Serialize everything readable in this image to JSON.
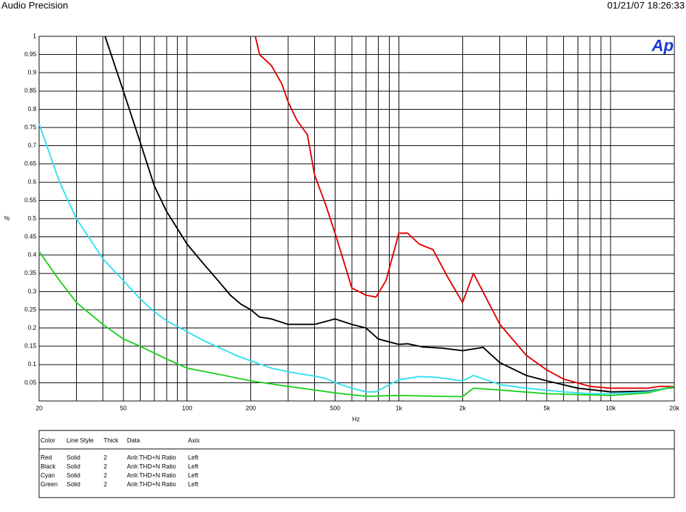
{
  "header": {
    "title": "Audio Precision",
    "timestamp": "01/21/07 18:26:33",
    "logo": "Ap"
  },
  "chart_data": {
    "type": "line",
    "xlabel": "Hz",
    "ylabel": "%",
    "xscale": "log",
    "grid": true,
    "xlim": [
      20,
      20000
    ],
    "ylim": [
      0,
      1
    ],
    "xticks": [
      20,
      50,
      100,
      200,
      500,
      {
        "value": 1000,
        "label": "1k"
      },
      {
        "value": 2000,
        "label": "2k"
      },
      {
        "value": 5000,
        "label": "5k"
      },
      {
        "value": 10000,
        "label": "10k"
      },
      {
        "value": 20000,
        "label": "20k"
      }
    ],
    "xminor": [
      30,
      40,
      60,
      70,
      80,
      90,
      300,
      400,
      600,
      700,
      800,
      900,
      3000,
      4000,
      6000,
      7000,
      8000,
      9000
    ],
    "yticks": [
      0.05,
      0.1,
      0.15,
      0.2,
      0.25,
      0.3,
      0.35,
      0.4,
      0.45,
      0.5,
      0.55,
      0.6,
      0.65,
      0.7,
      0.75,
      0.8,
      0.85,
      0.9,
      0.95,
      1
    ],
    "series": [
      {
        "name": "Red",
        "color": "#e00000",
        "x": [
          210,
          220,
          250,
          280,
          300,
          330,
          370,
          400,
          450,
          500,
          600,
          700,
          780,
          870,
          1000,
          1100,
          1250,
          1450,
          1700,
          2000,
          2250,
          3000,
          4000,
          5000,
          6000,
          8000,
          10000,
          15000,
          17000,
          20000
        ],
        "values": [
          1.0,
          0.95,
          0.92,
          0.87,
          0.82,
          0.77,
          0.73,
          0.62,
          0.54,
          0.46,
          0.31,
          0.29,
          0.285,
          0.33,
          0.46,
          0.46,
          0.43,
          0.415,
          0.34,
          0.27,
          0.35,
          0.21,
          0.125,
          0.085,
          0.06,
          0.04,
          0.035,
          0.035,
          0.04,
          0.04
        ]
      },
      {
        "name": "Black",
        "color": "#000000",
        "x": [
          41,
          50,
          60,
          70,
          80,
          100,
          120,
          140,
          160,
          180,
          200,
          220,
          250,
          300,
          350,
          400,
          500,
          600,
          700,
          800,
          1000,
          1100,
          1300,
          1600,
          2000,
          2500,
          3000,
          4000,
          5000,
          7000,
          10000,
          15000,
          20000
        ],
        "values": [
          1.0,
          0.85,
          0.71,
          0.59,
          0.52,
          0.43,
          0.375,
          0.33,
          0.29,
          0.265,
          0.25,
          0.23,
          0.225,
          0.21,
          0.21,
          0.21,
          0.225,
          0.21,
          0.2,
          0.17,
          0.155,
          0.157,
          0.148,
          0.145,
          0.138,
          0.147,
          0.105,
          0.07,
          0.055,
          0.035,
          0.025,
          0.027,
          0.038
        ]
      },
      {
        "name": "Cyan",
        "color": "#30e0f0",
        "x": [
          20,
          25,
          30,
          40,
          50,
          60,
          70,
          80,
          100,
          120,
          150,
          170,
          200,
          250,
          300,
          400,
          450,
          500,
          600,
          700,
          780,
          900,
          1000,
          1250,
          1500,
          2000,
          2250,
          3000,
          4000,
          6000,
          8000,
          10000,
          15000,
          20000
        ],
        "values": [
          0.76,
          0.6,
          0.5,
          0.39,
          0.33,
          0.28,
          0.245,
          0.22,
          0.19,
          0.165,
          0.14,
          0.125,
          0.11,
          0.09,
          0.08,
          0.068,
          0.062,
          0.05,
          0.035,
          0.025,
          0.025,
          0.045,
          0.058,
          0.067,
          0.065,
          0.055,
          0.07,
          0.045,
          0.035,
          0.025,
          0.02,
          0.02,
          0.025,
          0.04
        ]
      },
      {
        "name": "Green",
        "color": "#20d020",
        "x": [
          20,
          25,
          30,
          40,
          50,
          60,
          80,
          100,
          150,
          200,
          300,
          400,
          500,
          700,
          1000,
          1500,
          2000,
          2250,
          3000,
          5000,
          10000,
          15000,
          20000
        ],
        "values": [
          0.41,
          0.33,
          0.27,
          0.21,
          0.17,
          0.15,
          0.115,
          0.09,
          0.07,
          0.055,
          0.04,
          0.03,
          0.022,
          0.013,
          0.015,
          0.013,
          0.012,
          0.035,
          0.03,
          0.02,
          0.015,
          0.022,
          0.04
        ]
      }
    ]
  },
  "legend_table": {
    "headers": [
      "Color",
      "Line Style",
      "Thick",
      "Data",
      "Axis"
    ],
    "rows": [
      [
        "Solid",
        "2",
        "Anlr.THD+N Ratio",
        "Left"
      ],
      [
        "Solid",
        "2",
        "Anlr.THD+N Ratio",
        "Left"
      ],
      [
        "Solid",
        "2",
        "Anlr.THD+N Ratio",
        "Left"
      ],
      [
        "Solid",
        "2",
        "Anlr.THD+N Ratio",
        "Left"
      ]
    ]
  }
}
